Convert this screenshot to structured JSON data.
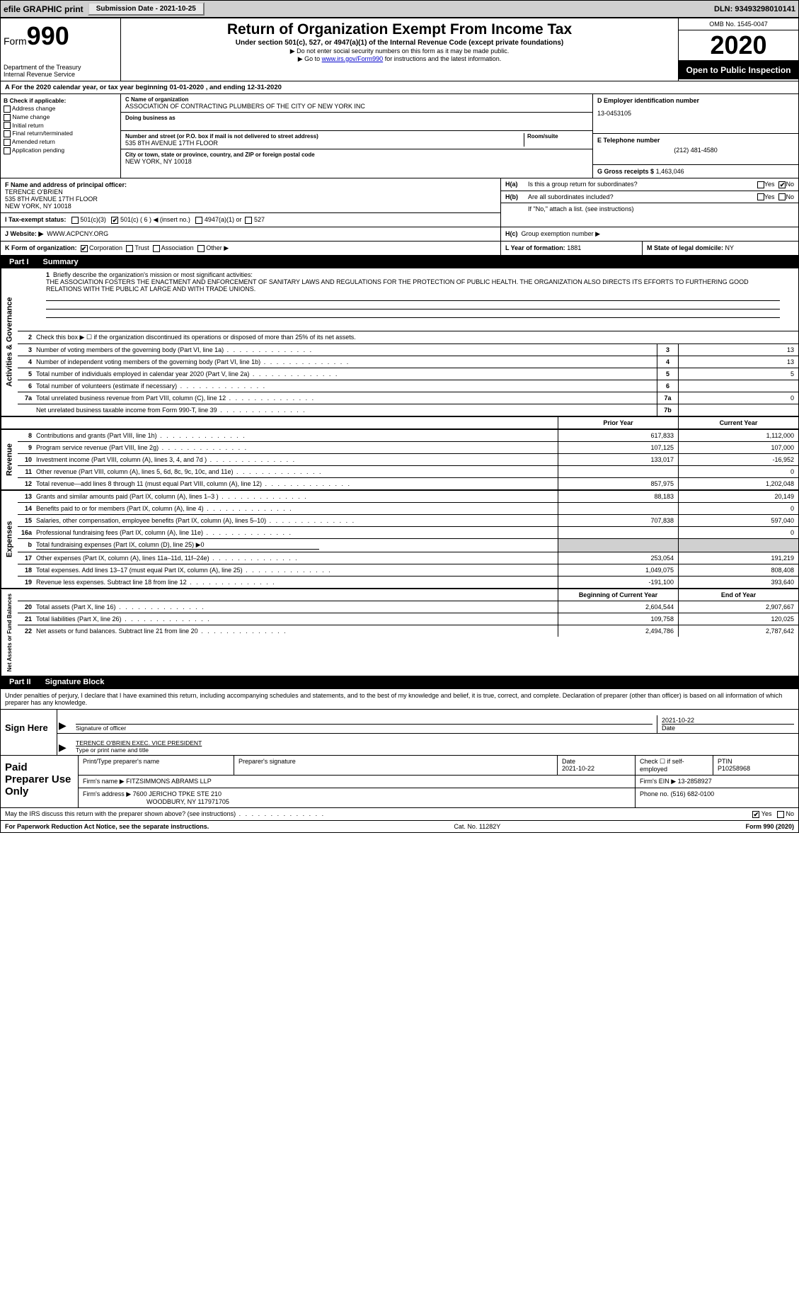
{
  "top": {
    "efile": "efile GRAPHIC print",
    "sub_label": "Submission Date - 2021-10-25",
    "dln": "DLN: 93493298010141"
  },
  "header": {
    "form_word": "Form",
    "form_num": "990",
    "dept": "Department of the Treasury\nInternal Revenue Service",
    "title": "Return of Organization Exempt From Income Tax",
    "sub1": "Under section 501(c), 527, or 4947(a)(1) of the Internal Revenue Code (except private foundations)",
    "sub2": "▶ Do not enter social security numbers on this form as it may be made public.",
    "sub3_pre": "▶ Go to ",
    "sub3_link": "www.irs.gov/Form990",
    "sub3_post": " for instructions and the latest information.",
    "omb": "OMB No. 1545-0047",
    "year": "2020",
    "open": "Open to Public Inspection"
  },
  "period": "For the 2020 calendar year, or tax year beginning 01-01-2020   , and ending 12-31-2020",
  "boxB": {
    "label": "B Check if applicable:",
    "items": [
      "Address change",
      "Name change",
      "Initial return",
      "Final return/terminated",
      "Amended return",
      "Application pending"
    ]
  },
  "boxC": {
    "name_label": "C Name of organization",
    "name": "ASSOCIATION OF CONTRACTING PLUMBERS OF THE CITY OF NEW YORK INC",
    "dba_label": "Doing business as",
    "street_label": "Number and street (or P.O. box if mail is not delivered to street address)",
    "room_label": "Room/suite",
    "street": "535 8TH AVENUE 17TH FLOOR",
    "city_label": "City or town, state or province, country, and ZIP or foreign postal code",
    "city": "NEW YORK, NY  10018"
  },
  "boxD": {
    "label": "D Employer identification number",
    "value": "13-0453105"
  },
  "boxE": {
    "label": "E Telephone number",
    "value": "(212) 481-4580"
  },
  "boxG": {
    "label": "G Gross receipts $",
    "value": "1,463,046"
  },
  "boxF": {
    "label": "F  Name and address of principal officer:",
    "name": "TERENCE O'BRIEN",
    "addr1": "535 8TH AVENUE 17TH FLOOR",
    "addr2": "NEW YORK, NY  10018"
  },
  "boxH": {
    "a": "Is this a group return for subordinates?",
    "b": "Are all subordinates included?",
    "b_note": "If \"No,\" attach a list. (see instructions)",
    "c": "Group exemption number ▶",
    "yes": "Yes",
    "no": "No"
  },
  "rowI": {
    "label": "I   Tax-exempt status:",
    "o1": "501(c)(3)",
    "o2": "501(c) ( 6 ) ◀ (insert no.)",
    "o3": "4947(a)(1) or",
    "o4": "527"
  },
  "rowJ": {
    "label": "J   Website: ▶",
    "value": "WWW.ACPCNY.ORG"
  },
  "rowK": {
    "label": "K Form of organization:",
    "o1": "Corporation",
    "o2": "Trust",
    "o3": "Association",
    "o4": "Other ▶"
  },
  "rowL": {
    "label": "L Year of formation:",
    "value": "1881"
  },
  "rowM": {
    "label": "M State of legal domicile:",
    "value": "NY"
  },
  "part1": {
    "tab": "Part I",
    "title": "Summary"
  },
  "mission": {
    "n": "1",
    "label": "Briefly describe the organization's mission or most significant activities:",
    "text": "THE ASSOCIATION FOSTERS THE ENACTMENT AND ENFORCEMENT OF SANITARY LAWS AND REGULATIONS FOR THE PROTECTION OF PUBLIC HEALTH. THE ORGANIZATION ALSO DIRECTS ITS EFFORTS TO FURTHERING GOOD RELATIONS WITH THE PUBLIC AT LARGE AND WITH TRADE UNIONS."
  },
  "gov": {
    "strip": "Activities & Governance",
    "r2": "Check this box ▶ ☐  if the organization discontinued its operations or disposed of more than 25% of its net assets.",
    "rows": [
      {
        "n": "3",
        "d": "Number of voting members of the governing body (Part VI, line 1a)",
        "cn": "3",
        "v": "13"
      },
      {
        "n": "4",
        "d": "Number of independent voting members of the governing body (Part VI, line 1b)",
        "cn": "4",
        "v": "13"
      },
      {
        "n": "5",
        "d": "Total number of individuals employed in calendar year 2020 (Part V, line 2a)",
        "cn": "5",
        "v": "5"
      },
      {
        "n": "6",
        "d": "Total number of volunteers (estimate if necessary)",
        "cn": "6",
        "v": ""
      },
      {
        "n": "7a",
        "d": "Total unrelated business revenue from Part VIII, column (C), line 12",
        "cn": "7a",
        "v": "0"
      },
      {
        "n": "",
        "d": "Net unrelated business taxable income from Form 990-T, line 39",
        "cn": "7b",
        "v": ""
      }
    ]
  },
  "pycy": {
    "prior": "Prior Year",
    "current": "Current Year"
  },
  "rev": {
    "strip": "Revenue",
    "rows": [
      {
        "n": "8",
        "d": "Contributions and grants (Part VIII, line 1h)",
        "p": "617,833",
        "c": "1,112,000"
      },
      {
        "n": "9",
        "d": "Program service revenue (Part VIII, line 2g)",
        "p": "107,125",
        "c": "107,000"
      },
      {
        "n": "10",
        "d": "Investment income (Part VIII, column (A), lines 3, 4, and 7d )",
        "p": "133,017",
        "c": "-16,952"
      },
      {
        "n": "11",
        "d": "Other revenue (Part VIII, column (A), lines 5, 6d, 8c, 9c, 10c, and 11e)",
        "p": "",
        "c": "0"
      },
      {
        "n": "12",
        "d": "Total revenue—add lines 8 through 11 (must equal Part VIII, column (A), line 12)",
        "p": "857,975",
        "c": "1,202,048"
      }
    ]
  },
  "exp": {
    "strip": "Expenses",
    "rows": [
      {
        "n": "13",
        "d": "Grants and similar amounts paid (Part IX, column (A), lines 1–3 )",
        "p": "88,183",
        "c": "20,149"
      },
      {
        "n": "14",
        "d": "Benefits paid to or for members (Part IX, column (A), line 4)",
        "p": "",
        "c": "0"
      },
      {
        "n": "15",
        "d": "Salaries, other compensation, employee benefits (Part IX, column (A), lines 5–10)",
        "p": "707,838",
        "c": "597,040"
      },
      {
        "n": "16a",
        "d": "Professional fundraising fees (Part IX, column (A), line 11e)",
        "p": "",
        "c": "0"
      },
      {
        "n": "b",
        "d": "Total fundraising expenses (Part IX, column (D), line 25) ▶0",
        "p": "",
        "c": "",
        "noval": true
      },
      {
        "n": "17",
        "d": "Other expenses (Part IX, column (A), lines 11a–11d, 11f–24e)",
        "p": "253,054",
        "c": "191,219"
      },
      {
        "n": "18",
        "d": "Total expenses. Add lines 13–17 (must equal Part IX, column (A), line 25)",
        "p": "1,049,075",
        "c": "808,408"
      },
      {
        "n": "19",
        "d": "Revenue less expenses. Subtract line 18 from line 12",
        "p": "-191,100",
        "c": "393,640"
      }
    ]
  },
  "net": {
    "strip": "Net Assets or Fund Balances",
    "head": {
      "b": "Beginning of Current Year",
      "e": "End of Year"
    },
    "rows": [
      {
        "n": "20",
        "d": "Total assets (Part X, line 16)",
        "p": "2,604,544",
        "c": "2,907,667"
      },
      {
        "n": "21",
        "d": "Total liabilities (Part X, line 26)",
        "p": "109,758",
        "c": "120,025"
      },
      {
        "n": "22",
        "d": "Net assets or fund balances. Subtract line 21 from line 20",
        "p": "2,494,786",
        "c": "2,787,642"
      }
    ]
  },
  "part2": {
    "tab": "Part II",
    "title": "Signature Block"
  },
  "sig": {
    "intro": "Under penalties of perjury, I declare that I have examined this return, including accompanying schedules and statements, and to the best of my knowledge and belief, it is true, correct, and complete. Declaration of preparer (other than officer) is based on all information of which preparer has any knowledge.",
    "here": "Sign Here",
    "sig_label": "Signature of officer",
    "date": "2021-10-22",
    "date_label": "Date",
    "name": "TERENCE O'BRIEN  EXEC. VICE PRESIDENT",
    "name_label": "Type or print name and title"
  },
  "paid": {
    "left": "Paid Preparer Use Only",
    "h1": "Print/Type preparer's name",
    "h2": "Preparer's signature",
    "h3_label": "Date",
    "h3": "2021-10-22",
    "h4": "Check ☐ if self-employed",
    "h5_label": "PTIN",
    "h5": "P10258968",
    "firm_name_label": "Firm's name    ▶",
    "firm_name": "FITZSIMMONS ABRAMS LLP",
    "firm_ein_label": "Firm's EIN ▶",
    "firm_ein": "13-2858927",
    "firm_addr_label": "Firm's address ▶",
    "firm_addr1": "7600 JERICHO TPKE STE 210",
    "firm_addr2": "WOODBURY, NY  117971705",
    "phone_label": "Phone no.",
    "phone": "(516) 682-0100"
  },
  "discuss": {
    "q": "May the IRS discuss this return with the preparer shown above? (see instructions)",
    "yes": "Yes",
    "no": "No"
  },
  "footer": {
    "left": "For Paperwork Reduction Act Notice, see the separate instructions.",
    "mid": "Cat. No. 11282Y",
    "right": "Form 990 (2020)"
  },
  "colors": {
    "top_bg": "#d0d0d0",
    "black": "#000000",
    "link": "#0000cc"
  }
}
